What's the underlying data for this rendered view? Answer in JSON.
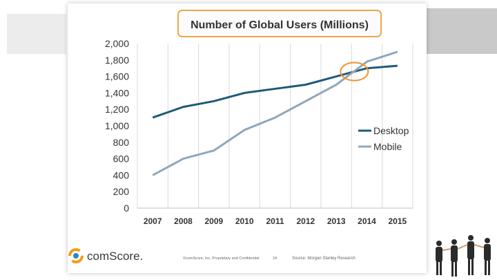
{
  "chart_data": {
    "type": "line",
    "title": "Number of Global Users (Millions)",
    "categories": [
      "2007",
      "2008",
      "2009",
      "2010",
      "2011",
      "2012",
      "2013",
      "2014",
      "2015"
    ],
    "series": [
      {
        "name": "Desktop",
        "color": "#1f5a78",
        "values": [
          1100,
          1230,
          1300,
          1400,
          1450,
          1500,
          1600,
          1700,
          1730
        ]
      },
      {
        "name": "Mobile",
        "color": "#8fa7bb",
        "values": [
          400,
          600,
          700,
          950,
          1100,
          1300,
          1500,
          1780,
          1900
        ]
      }
    ],
    "yticks": [
      "0",
      "200",
      "400",
      "600",
      "800",
      "1,000",
      "1,200",
      "1,400",
      "1,600",
      "1,800",
      "2,000"
    ],
    "ylim": [
      0,
      2000
    ],
    "highlight_color": "#f0932b",
    "legend_position": "middle-right"
  },
  "footer": {
    "brand": "comScore.",
    "copyright": "©comScore, Inc.  Proprietary and Confidential",
    "page": "24",
    "source": "Source: Morgan Stanley Research"
  }
}
